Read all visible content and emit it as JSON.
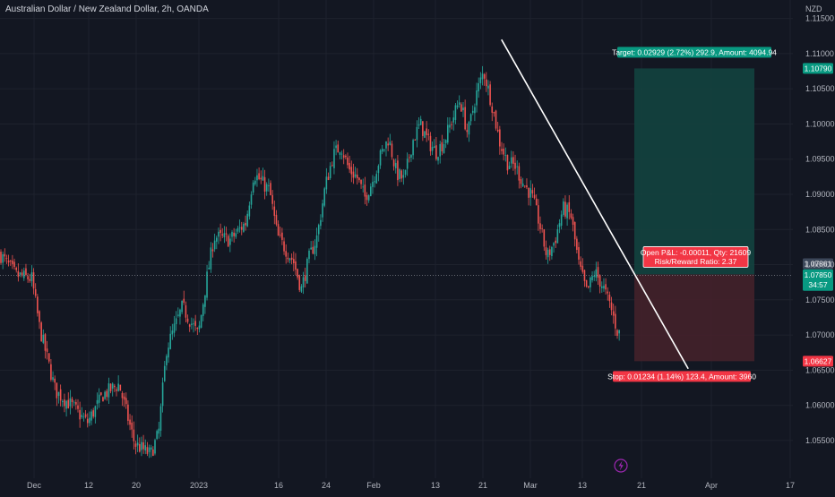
{
  "header": {
    "title": "Australian Dollar / New Zealand Dollar, 2h, OANDA",
    "currency": "NZD"
  },
  "colors": {
    "background": "#131722",
    "grid": "#1e222d",
    "up": "#26a69a",
    "down": "#ef5350",
    "trendline": "#ffffff",
    "target_zone": "#13433f",
    "stop_zone": "#44212a",
    "target_badge": "#089981",
    "stop_badge": "#f23645",
    "current_price_badge": "#3c4759",
    "info_badge": "#f23645"
  },
  "icons": {
    "bottom_marker": "lightning-icon"
  },
  "chart_data": {
    "type": "candlestick",
    "title": "Australian Dollar / New Zealand Dollar, 2h, OANDA",
    "ylim": [
      1.049,
      1.1175
    ],
    "y_ticks": [
      "1.11500",
      "1.11000",
      "1.10500",
      "1.10000",
      "1.09500",
      "1.09000",
      "1.08500",
      "1.08000",
      "1.07500",
      "1.07000",
      "1.06500",
      "1.06000",
      "1.05500"
    ],
    "x_tick_labels": [
      "Dec",
      "12",
      "20",
      "2023",
      "16",
      "24",
      "Feb",
      "13",
      "21",
      "Mar",
      "13",
      "21",
      "Apr",
      "17"
    ],
    "close_path": [
      {
        "t": 0.0,
        "p": 1.0815
      },
      {
        "t": 0.02,
        "p": 1.0785
      },
      {
        "t": 0.04,
        "p": 1.078
      },
      {
        "t": 0.05,
        "p": 1.071
      },
      {
        "t": 0.07,
        "p": 1.062
      },
      {
        "t": 0.09,
        "p": 1.06
      },
      {
        "t": 0.11,
        "p": 1.0575
      },
      {
        "t": 0.13,
        "p": 1.0615
      },
      {
        "t": 0.15,
        "p": 1.063
      },
      {
        "t": 0.17,
        "p": 1.0545
      },
      {
        "t": 0.19,
        "p": 1.053
      },
      {
        "t": 0.2,
        "p": 1.056
      },
      {
        "t": 0.21,
        "p": 1.068
      },
      {
        "t": 0.23,
        "p": 1.074
      },
      {
        "t": 0.25,
        "p": 1.07
      },
      {
        "t": 0.26,
        "p": 1.0775
      },
      {
        "t": 0.27,
        "p": 1.084
      },
      {
        "t": 0.29,
        "p": 1.0835
      },
      {
        "t": 0.31,
        "p": 1.086
      },
      {
        "t": 0.32,
        "p": 1.093
      },
      {
        "t": 0.34,
        "p": 1.0905
      },
      {
        "t": 0.35,
        "p": 1.084
      },
      {
        "t": 0.37,
        "p": 1.0805
      },
      {
        "t": 0.38,
        "p": 1.0765
      },
      {
        "t": 0.39,
        "p": 1.081
      },
      {
        "t": 0.4,
        "p": 1.084
      },
      {
        "t": 0.41,
        "p": 1.091
      },
      {
        "t": 0.42,
        "p": 1.0955
      },
      {
        "t": 0.43,
        "p": 1.097
      },
      {
        "t": 0.44,
        "p": 1.0935
      },
      {
        "t": 0.45,
        "p": 1.0925
      },
      {
        "t": 0.46,
        "p": 1.0895
      },
      {
        "t": 0.47,
        "p": 1.092
      },
      {
        "t": 0.48,
        "p": 1.0955
      },
      {
        "t": 0.49,
        "p": 1.098
      },
      {
        "t": 0.5,
        "p": 1.093
      },
      {
        "t": 0.51,
        "p": 1.092
      },
      {
        "t": 0.52,
        "p": 1.0975
      },
      {
        "t": 0.53,
        "p": 1.1
      },
      {
        "t": 0.54,
        "p": 1.0975
      },
      {
        "t": 0.55,
        "p": 1.096
      },
      {
        "t": 0.56,
        "p": 1.0975
      },
      {
        "t": 0.57,
        "p": 1.1005
      },
      {
        "t": 0.58,
        "p": 1.1035
      },
      {
        "t": 0.59,
        "p": 1.0985
      },
      {
        "t": 0.6,
        "p": 1.104
      },
      {
        "t": 0.61,
        "p": 1.1075
      },
      {
        "t": 0.62,
        "p": 1.103
      },
      {
        "t": 0.63,
        "p": 1.0975
      },
      {
        "t": 0.64,
        "p": 1.0945
      },
      {
        "t": 0.65,
        "p": 1.094
      },
      {
        "t": 0.66,
        "p": 1.0915
      },
      {
        "t": 0.67,
        "p": 1.09
      },
      {
        "t": 0.68,
        "p": 1.086
      },
      {
        "t": 0.69,
        "p": 1.081
      },
      {
        "t": 0.7,
        "p": 1.0835
      },
      {
        "t": 0.71,
        "p": 1.088
      },
      {
        "t": 0.72,
        "p": 1.087
      },
      {
        "t": 0.73,
        "p": 1.08
      },
      {
        "t": 0.74,
        "p": 1.076
      },
      {
        "t": 0.75,
        "p": 1.079
      },
      {
        "t": 0.76,
        "p": 1.077
      },
      {
        "t": 0.77,
        "p": 1.074
      },
      {
        "t": 0.78,
        "p": 1.07
      },
      {
        "t": 0.79,
        "p": 1.073
      },
      {
        "t": 0.8,
        "p": 1.0715
      },
      {
        "t": 0.81,
        "p": 1.0785
      }
    ],
    "trendline": {
      "start": {
        "t": 0.6325,
        "p": 1.112
      },
      "end": {
        "t": 0.868,
        "p": 1.0652
      }
    },
    "position": {
      "entry": 1.07861,
      "target": 1.1079,
      "stop": 1.06627,
      "current": 1.0785,
      "countdown": "34:57",
      "target_label": "Target: 0.02929 (2.72%) 292.9, Amount: 4094.94",
      "stop_label": "Stop: 0.01234 (1.14%) 123.4, Amount: 3960",
      "pnl_label": "Open P&L: -0.00011, Qty: 21609",
      "rr_label": "Risk/Reward Ratio: 2.37"
    },
    "price_labels": {
      "target": "1.10790",
      "entry": "1.07861",
      "current": "1.07850",
      "stop": "1.06627"
    }
  }
}
